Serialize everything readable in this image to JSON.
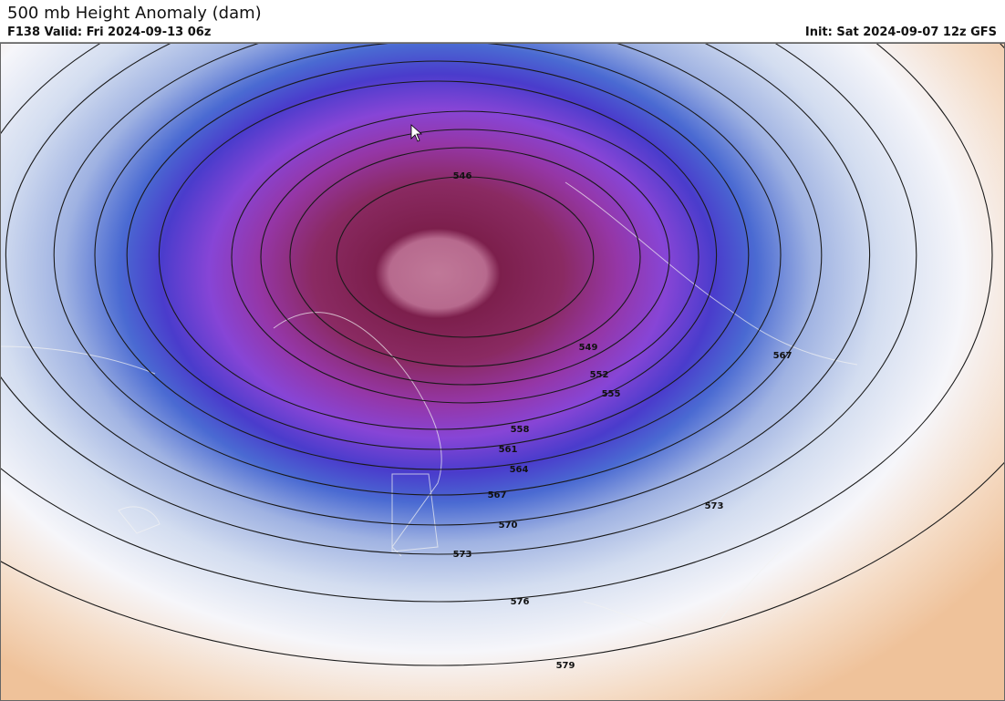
{
  "header": {
    "title": "500 mb Height Anomaly (dam)",
    "valid": "F138 Valid: Fri 2024-09-13 06z",
    "init": "Init: Sat 2024-09-07 12z GFS"
  },
  "contours": [
    546,
    549,
    552,
    555,
    558,
    561,
    564,
    567,
    570,
    573,
    576,
    579
  ],
  "extra_labels": [
    567,
    573
  ]
}
